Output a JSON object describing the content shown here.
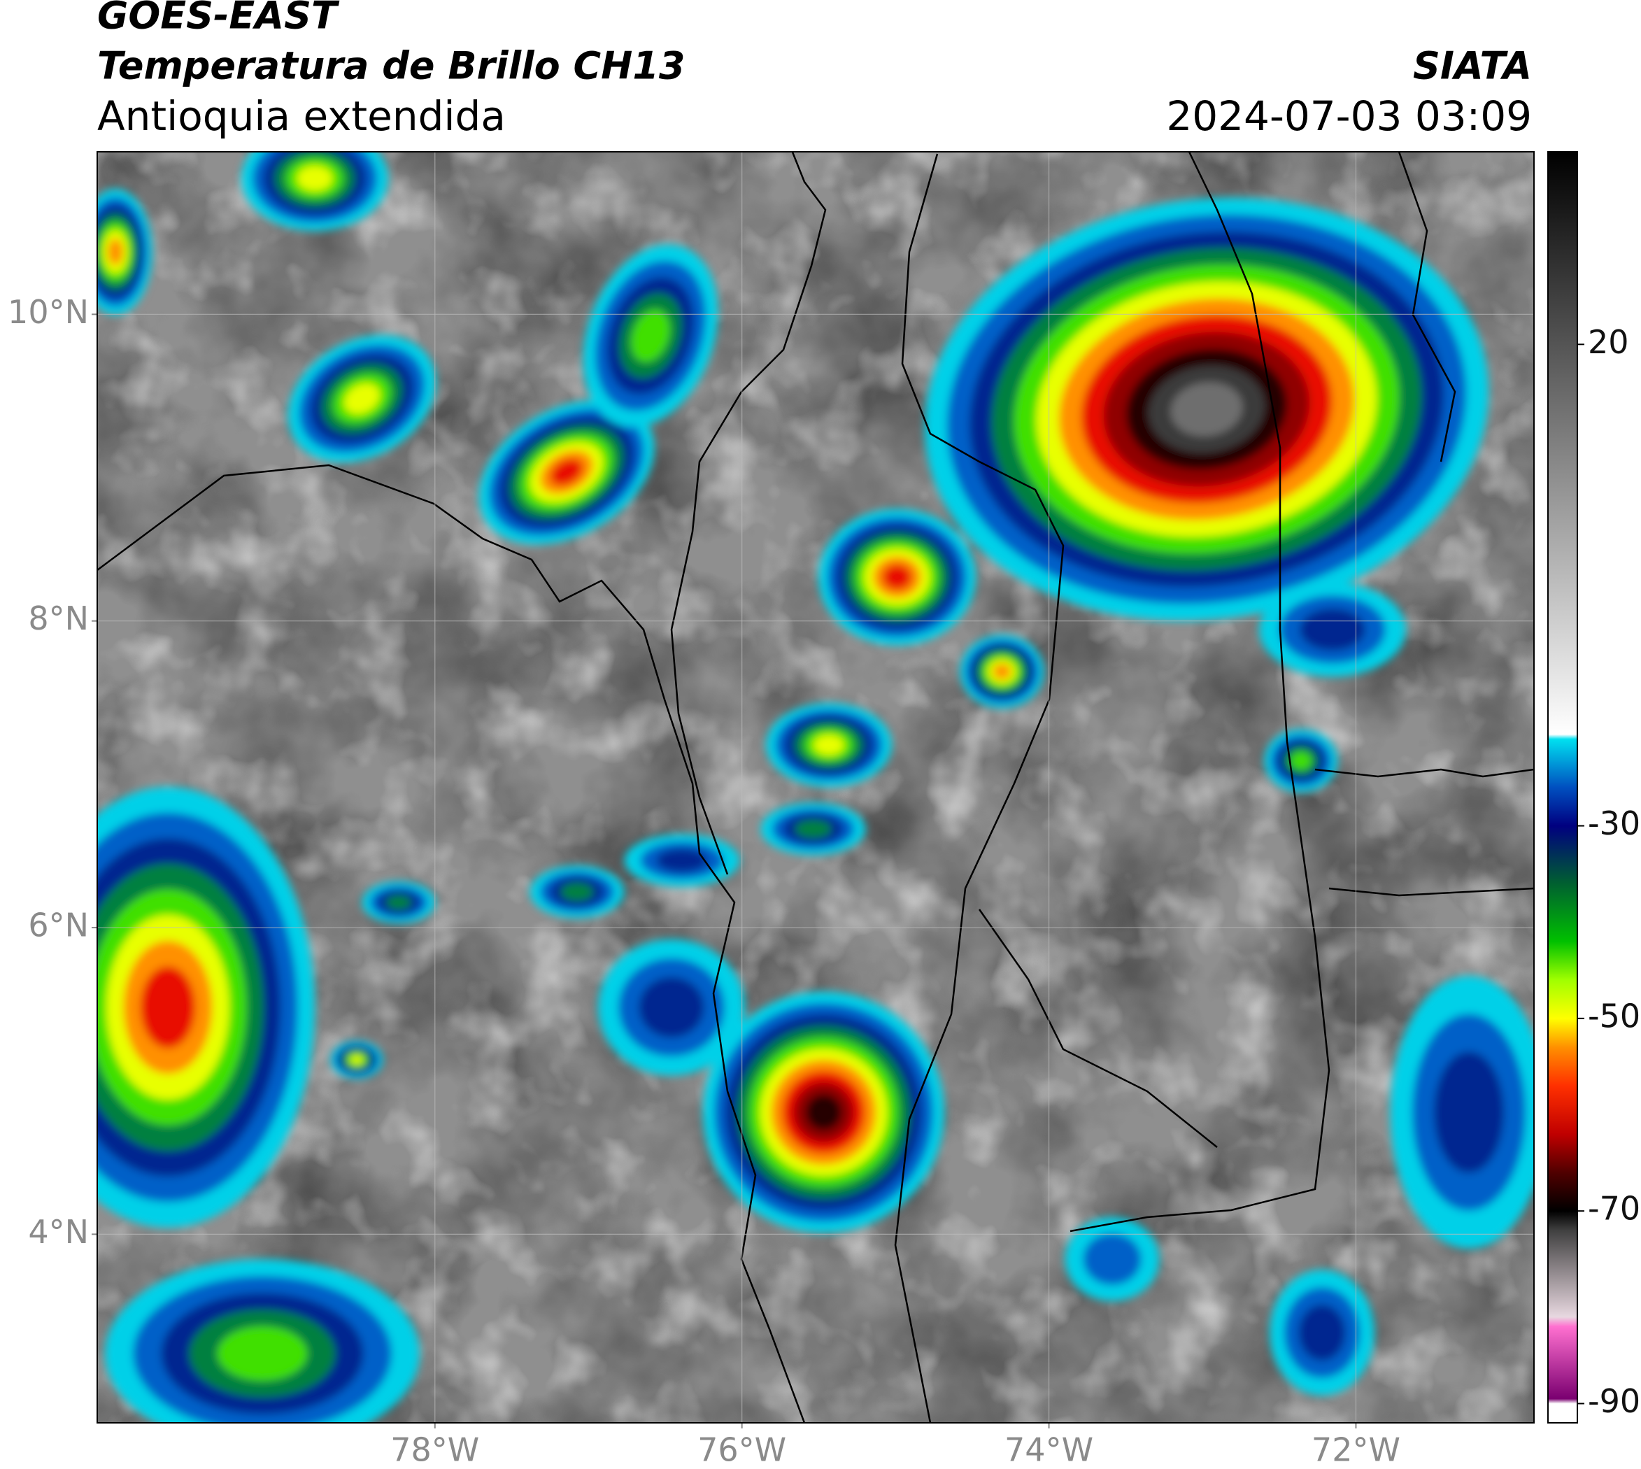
{
  "header": {
    "title": "GOES-EAST",
    "subtitle": "Temperatura de Brillo CH13",
    "region": "Antioquia extendida",
    "source": "SIATA",
    "datetime": "2024-07-03 03:09"
  },
  "map": {
    "lon_range": [
      -80.2,
      -70.84
    ],
    "lat_range": [
      2.77,
      11.06
    ],
    "lat_ticks": [
      {
        "value": 4,
        "label": "4°N"
      },
      {
        "value": 6,
        "label": "6°N"
      },
      {
        "value": 8,
        "label": "8°N"
      },
      {
        "value": 10,
        "label": "10°N"
      }
    ],
    "lon_ticks": [
      {
        "value": -78,
        "label": "78°W"
      },
      {
        "value": -76,
        "label": "76°W"
      },
      {
        "value": -74,
        "label": "74°W"
      },
      {
        "value": -72,
        "label": "72°W"
      }
    ]
  },
  "colorbar": {
    "range": [
      -92,
      40
    ],
    "ticks": [
      20,
      -30,
      -50,
      -70,
      -90
    ]
  }
}
